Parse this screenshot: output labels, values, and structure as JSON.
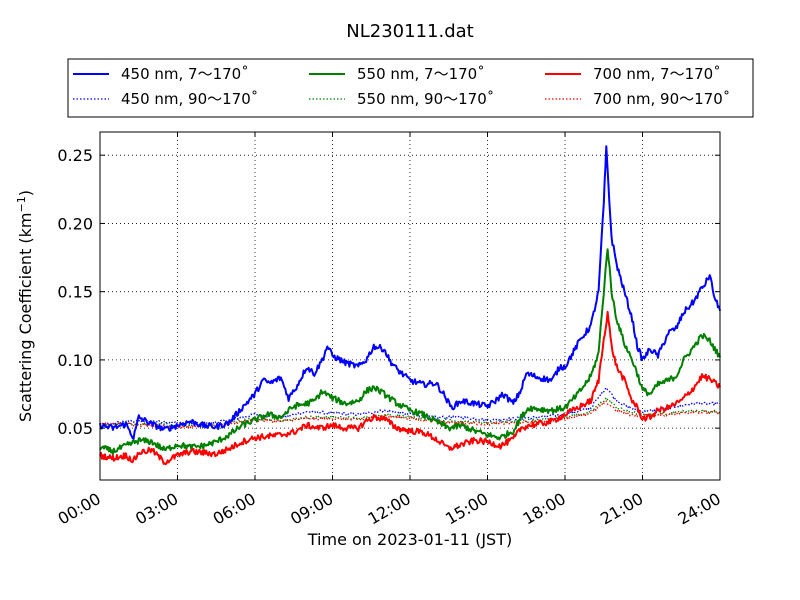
{
  "chart_data": {
    "type": "line",
    "title": "NL230111.dat",
    "xlabel": "Time on 2023-01-11 (JST)",
    "ylabel_main": "Scattering Coefficient (km",
    "ylabel_sup": "−1",
    "ylabel_close": ")",
    "x_unit": "hours",
    "xlim": [
      0,
      24
    ],
    "ylim": [
      0.012,
      0.267
    ],
    "x_ticks": [
      0,
      3,
      6,
      9,
      12,
      15,
      18,
      21,
      24
    ],
    "x_tick_labels": [
      "00:00",
      "03:00",
      "06:00",
      "09:00",
      "12:00",
      "15:00",
      "18:00",
      "21:00",
      "24:00"
    ],
    "y_ticks": [
      0.05,
      0.1,
      0.15,
      0.2,
      0.25
    ],
    "y_tick_labels": [
      "0.05",
      "0.10",
      "0.15",
      "0.20",
      "0.25"
    ],
    "grid": true,
    "legend_position": "top, above plot",
    "series": [
      {
        "name": "450 nm, 7～170˚",
        "color": "#0000ff",
        "style": "solid",
        "points": [
          [
            0,
            0.052
          ],
          [
            0.5,
            0.05
          ],
          [
            1,
            0.053
          ],
          [
            1.3,
            0.043
          ],
          [
            1.5,
            0.058
          ],
          [
            2,
            0.053
          ],
          [
            2.5,
            0.049
          ],
          [
            3,
            0.052
          ],
          [
            3.5,
            0.055
          ],
          [
            4,
            0.052
          ],
          [
            4.5,
            0.051
          ],
          [
            5,
            0.054
          ],
          [
            5.5,
            0.065
          ],
          [
            6,
            0.075
          ],
          [
            6.3,
            0.085
          ],
          [
            6.6,
            0.083
          ],
          [
            7,
            0.087
          ],
          [
            7.3,
            0.072
          ],
          [
            7.6,
            0.08
          ],
          [
            8,
            0.095
          ],
          [
            8.3,
            0.09
          ],
          [
            8.6,
            0.1
          ],
          [
            8.8,
            0.11
          ],
          [
            9,
            0.103
          ],
          [
            9.5,
            0.098
          ],
          [
            10,
            0.095
          ],
          [
            10.3,
            0.1
          ],
          [
            10.6,
            0.11
          ],
          [
            11,
            0.108
          ],
          [
            11.2,
            0.1
          ],
          [
            11.5,
            0.093
          ],
          [
            12,
            0.085
          ],
          [
            12.5,
            0.082
          ],
          [
            13,
            0.083
          ],
          [
            13.3,
            0.075
          ],
          [
            13.6,
            0.065
          ],
          [
            14,
            0.07
          ],
          [
            14.5,
            0.068
          ],
          [
            15,
            0.066
          ],
          [
            15.3,
            0.07
          ],
          [
            15.6,
            0.075
          ],
          [
            16,
            0.068
          ],
          [
            16.3,
            0.078
          ],
          [
            16.5,
            0.09
          ],
          [
            17,
            0.087
          ],
          [
            17.5,
            0.085
          ],
          [
            17.8,
            0.095
          ],
          [
            18,
            0.095
          ],
          [
            18.3,
            0.105
          ],
          [
            18.6,
            0.115
          ],
          [
            19,
            0.125
          ],
          [
            19.3,
            0.15
          ],
          [
            19.5,
            0.215
          ],
          [
            19.6,
            0.255
          ],
          [
            19.8,
            0.19
          ],
          [
            20,
            0.17
          ],
          [
            20.3,
            0.15
          ],
          [
            20.6,
            0.13
          ],
          [
            20.8,
            0.11
          ],
          [
            21,
            0.1
          ],
          [
            21.3,
            0.108
          ],
          [
            21.6,
            0.103
          ],
          [
            22,
            0.12
          ],
          [
            22.3,
            0.123
          ],
          [
            22.6,
            0.135
          ],
          [
            23,
            0.143
          ],
          [
            23.2,
            0.15
          ],
          [
            23.4,
            0.155
          ],
          [
            23.6,
            0.162
          ],
          [
            23.8,
            0.145
          ],
          [
            24,
            0.136
          ]
        ]
      },
      {
        "name": "550 nm, 7～170˚",
        "color": "#008000",
        "style": "solid",
        "points": [
          [
            0,
            0.036
          ],
          [
            0.5,
            0.033
          ],
          [
            1,
            0.037
          ],
          [
            1.5,
            0.041
          ],
          [
            2,
            0.04
          ],
          [
            2.5,
            0.034
          ],
          [
            3,
            0.038
          ],
          [
            3.5,
            0.036
          ],
          [
            4,
            0.037
          ],
          [
            4.5,
            0.04
          ],
          [
            5,
            0.045
          ],
          [
            5.5,
            0.052
          ],
          [
            6,
            0.056
          ],
          [
            6.5,
            0.06
          ],
          [
            7,
            0.058
          ],
          [
            7.5,
            0.066
          ],
          [
            8,
            0.068
          ],
          [
            8.3,
            0.07
          ],
          [
            8.6,
            0.077
          ],
          [
            9,
            0.072
          ],
          [
            9.5,
            0.068
          ],
          [
            10,
            0.07
          ],
          [
            10.3,
            0.077
          ],
          [
            10.6,
            0.08
          ],
          [
            11,
            0.075
          ],
          [
            11.5,
            0.068
          ],
          [
            12,
            0.063
          ],
          [
            12.5,
            0.06
          ],
          [
            13,
            0.055
          ],
          [
            13.5,
            0.05
          ],
          [
            14,
            0.052
          ],
          [
            14.5,
            0.048
          ],
          [
            15,
            0.045
          ],
          [
            15.5,
            0.043
          ],
          [
            16,
            0.048
          ],
          [
            16.3,
            0.058
          ],
          [
            16.6,
            0.065
          ],
          [
            17,
            0.064
          ],
          [
            17.5,
            0.063
          ],
          [
            18,
            0.065
          ],
          [
            18.5,
            0.075
          ],
          [
            19,
            0.088
          ],
          [
            19.3,
            0.105
          ],
          [
            19.5,
            0.15
          ],
          [
            19.65,
            0.183
          ],
          [
            19.8,
            0.15
          ],
          [
            20,
            0.13
          ],
          [
            20.3,
            0.112
          ],
          [
            20.6,
            0.1
          ],
          [
            20.8,
            0.09
          ],
          [
            21,
            0.078
          ],
          [
            21.3,
            0.075
          ],
          [
            21.6,
            0.082
          ],
          [
            22,
            0.085
          ],
          [
            22.3,
            0.088
          ],
          [
            22.6,
            0.1
          ],
          [
            23,
            0.11
          ],
          [
            23.3,
            0.118
          ],
          [
            23.6,
            0.114
          ],
          [
            24,
            0.102
          ]
        ]
      },
      {
        "name": "700 nm, 7～170˚",
        "color": "#ff0000",
        "style": "solid",
        "points": [
          [
            0,
            0.03
          ],
          [
            0.5,
            0.028
          ],
          [
            1,
            0.03
          ],
          [
            1.3,
            0.026
          ],
          [
            1.5,
            0.032
          ],
          [
            2,
            0.034
          ],
          [
            2.5,
            0.025
          ],
          [
            3,
            0.03
          ],
          [
            3.5,
            0.033
          ],
          [
            4,
            0.032
          ],
          [
            4.5,
            0.031
          ],
          [
            5,
            0.035
          ],
          [
            5.5,
            0.04
          ],
          [
            6,
            0.043
          ],
          [
            6.5,
            0.044
          ],
          [
            7,
            0.045
          ],
          [
            7.5,
            0.047
          ],
          [
            8,
            0.052
          ],
          [
            8.5,
            0.05
          ],
          [
            9,
            0.052
          ],
          [
            9.5,
            0.05
          ],
          [
            10,
            0.05
          ],
          [
            10.3,
            0.055
          ],
          [
            10.6,
            0.058
          ],
          [
            11,
            0.057
          ],
          [
            11.5,
            0.05
          ],
          [
            12,
            0.048
          ],
          [
            12.5,
            0.047
          ],
          [
            13,
            0.042
          ],
          [
            13.5,
            0.035
          ],
          [
            14,
            0.038
          ],
          [
            14.5,
            0.041
          ],
          [
            15,
            0.04
          ],
          [
            15.5,
            0.037
          ],
          [
            16,
            0.042
          ],
          [
            16.3,
            0.05
          ],
          [
            16.6,
            0.052
          ],
          [
            17,
            0.053
          ],
          [
            17.5,
            0.055
          ],
          [
            18,
            0.06
          ],
          [
            18.5,
            0.065
          ],
          [
            19,
            0.07
          ],
          [
            19.3,
            0.085
          ],
          [
            19.5,
            0.115
          ],
          [
            19.65,
            0.135
          ],
          [
            19.8,
            0.11
          ],
          [
            20,
            0.095
          ],
          [
            20.3,
            0.085
          ],
          [
            20.6,
            0.07
          ],
          [
            20.8,
            0.065
          ],
          [
            21,
            0.057
          ],
          [
            21.3,
            0.058
          ],
          [
            21.6,
            0.063
          ],
          [
            22,
            0.065
          ],
          [
            22.5,
            0.07
          ],
          [
            23,
            0.08
          ],
          [
            23.3,
            0.088
          ],
          [
            23.6,
            0.086
          ],
          [
            24,
            0.08
          ]
        ]
      },
      {
        "name": "450 nm, 90～170˚",
        "color": "#0000ff",
        "style": "dotted",
        "points": [
          [
            0,
            0.052
          ],
          [
            1,
            0.055
          ],
          [
            2,
            0.055
          ],
          [
            3,
            0.054
          ],
          [
            4,
            0.053
          ],
          [
            5,
            0.056
          ],
          [
            6,
            0.06
          ],
          [
            7,
            0.058
          ],
          [
            8,
            0.062
          ],
          [
            9,
            0.061
          ],
          [
            10,
            0.06
          ],
          [
            11,
            0.063
          ],
          [
            12,
            0.06
          ],
          [
            13,
            0.058
          ],
          [
            14,
            0.058
          ],
          [
            15,
            0.056
          ],
          [
            16,
            0.057
          ],
          [
            17,
            0.058
          ],
          [
            18,
            0.06
          ],
          [
            19,
            0.065
          ],
          [
            19.6,
            0.08
          ],
          [
            20,
            0.07
          ],
          [
            20.5,
            0.065
          ],
          [
            21,
            0.062
          ],
          [
            22,
            0.065
          ],
          [
            23,
            0.068
          ],
          [
            24,
            0.068
          ]
        ]
      },
      {
        "name": "550 nm, 90～170˚",
        "color": "#008000",
        "style": "dotted",
        "points": [
          [
            0,
            0.052
          ],
          [
            1,
            0.053
          ],
          [
            2,
            0.053
          ],
          [
            3,
            0.052
          ],
          [
            4,
            0.051
          ],
          [
            5,
            0.054
          ],
          [
            6,
            0.057
          ],
          [
            7,
            0.056
          ],
          [
            8,
            0.058
          ],
          [
            9,
            0.058
          ],
          [
            10,
            0.057
          ],
          [
            11,
            0.06
          ],
          [
            12,
            0.058
          ],
          [
            13,
            0.056
          ],
          [
            14,
            0.055
          ],
          [
            15,
            0.054
          ],
          [
            16,
            0.055
          ],
          [
            17,
            0.056
          ],
          [
            18,
            0.058
          ],
          [
            19,
            0.062
          ],
          [
            19.6,
            0.072
          ],
          [
            20,
            0.065
          ],
          [
            20.5,
            0.062
          ],
          [
            21,
            0.06
          ],
          [
            22,
            0.061
          ],
          [
            23,
            0.063
          ],
          [
            24,
            0.062
          ]
        ]
      },
      {
        "name": "700 nm, 90～170˚",
        "color": "#ff0000",
        "style": "dotted",
        "points": [
          [
            0,
            0.053
          ],
          [
            1,
            0.053
          ],
          [
            2,
            0.052
          ],
          [
            3,
            0.051
          ],
          [
            4,
            0.051
          ],
          [
            5,
            0.053
          ],
          [
            6,
            0.056
          ],
          [
            7,
            0.055
          ],
          [
            8,
            0.057
          ],
          [
            9,
            0.057
          ],
          [
            10,
            0.056
          ],
          [
            11,
            0.059
          ],
          [
            12,
            0.057
          ],
          [
            13,
            0.055
          ],
          [
            14,
            0.054
          ],
          [
            15,
            0.053
          ],
          [
            16,
            0.054
          ],
          [
            17,
            0.055
          ],
          [
            18,
            0.057
          ],
          [
            19,
            0.061
          ],
          [
            19.6,
            0.069
          ],
          [
            20,
            0.063
          ],
          [
            20.5,
            0.06
          ],
          [
            21,
            0.059
          ],
          [
            22,
            0.06
          ],
          [
            23,
            0.062
          ],
          [
            24,
            0.061
          ]
        ]
      }
    ]
  }
}
